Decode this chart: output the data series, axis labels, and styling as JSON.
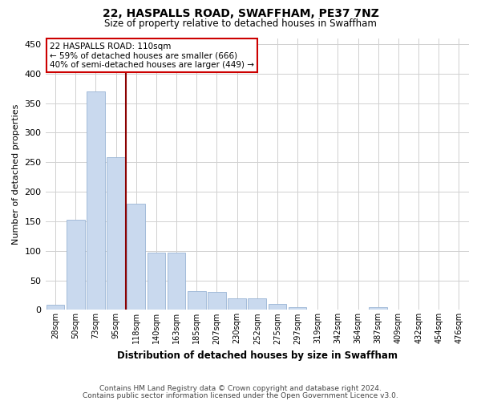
{
  "title1": "22, HASPALLS ROAD, SWAFFHAM, PE37 7NZ",
  "title2": "Size of property relative to detached houses in Swaffham",
  "xlabel": "Distribution of detached houses by size in Swaffham",
  "ylabel": "Number of detached properties",
  "annotation_line1": "22 HASPALLS ROAD: 110sqm",
  "annotation_line2": "← 59% of detached houses are smaller (666)",
  "annotation_line3": "40% of semi-detached houses are larger (449) →",
  "categories": [
    "28sqm",
    "50sqm",
    "73sqm",
    "95sqm",
    "118sqm",
    "140sqm",
    "163sqm",
    "185sqm",
    "207sqm",
    "230sqm",
    "252sqm",
    "275sqm",
    "297sqm",
    "319sqm",
    "342sqm",
    "364sqm",
    "387sqm",
    "409sqm",
    "432sqm",
    "454sqm",
    "476sqm"
  ],
  "values": [
    8,
    152,
    370,
    258,
    180,
    97,
    97,
    32,
    30,
    20,
    20,
    10,
    5,
    0,
    0,
    0,
    5,
    0,
    0,
    0,
    0
  ],
  "bar_color": "#c9d9ee",
  "bar_edge_color": "#9ab5d5",
  "vline_x": 3.5,
  "vline_color": "#8b0000",
  "annotation_box_color": "#ffffff",
  "annotation_box_edge": "#cc0000",
  "grid_color": "#d0d0d0",
  "background_color": "#ffffff",
  "footer1": "Contains HM Land Registry data © Crown copyright and database right 2024.",
  "footer2": "Contains public sector information licensed under the Open Government Licence v3.0."
}
